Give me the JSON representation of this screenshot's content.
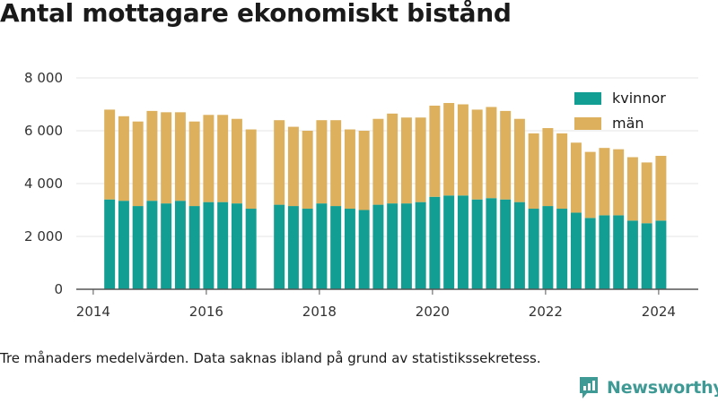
{
  "chart_data": {
    "type": "bar",
    "stacked": true,
    "title": "Antal mottagare ekonomiskt bistånd",
    "note": "Tre månaders medelvärden. Data saknas ibland på grund av statistikssekretess.",
    "brand": "Newsworthy",
    "xlim": [
      2013.7,
      2024.7
    ],
    "ylim": [
      0,
      8000
    ],
    "y_ticks": [
      0,
      2000,
      4000,
      6000,
      8000
    ],
    "y_tick_labels": [
      "0",
      "2 000",
      "4 000",
      "6 000",
      "8 000"
    ],
    "x_ticks": [
      2014,
      2016,
      2018,
      2020,
      2022,
      2024
    ],
    "x_tick_labels": [
      "2014",
      "2016",
      "2018",
      "2020",
      "2022",
      "2024"
    ],
    "legend_position": "top-right",
    "colors": {
      "kvinnor": "#139e93",
      "man": "#dcb05d",
      "axis": "#555555",
      "grid": "#e6e6e6",
      "brand": "#3f9a95"
    },
    "x": [
      2014.29,
      2014.54,
      2014.79,
      2015.04,
      2015.29,
      2015.54,
      2015.79,
      2016.04,
      2016.29,
      2016.54,
      2016.79,
      2017.29,
      2017.54,
      2017.79,
      2018.04,
      2018.29,
      2018.54,
      2018.79,
      2019.04,
      2019.29,
      2019.54,
      2019.79,
      2020.04,
      2020.29,
      2020.54,
      2020.79,
      2021.04,
      2021.29,
      2021.54,
      2021.79,
      2022.04,
      2022.29,
      2022.54,
      2022.79,
      2023.04,
      2023.29,
      2023.54,
      2023.79,
      2024.04
    ],
    "series": [
      {
        "name": "kvinnor",
        "values": [
          3400,
          3350,
          3150,
          3350,
          3250,
          3350,
          3150,
          3300,
          3300,
          3250,
          3050,
          3200,
          3150,
          3050,
          3250,
          3150,
          3050,
          3000,
          3200,
          3250,
          3250,
          3300,
          3500,
          3550,
          3550,
          3400,
          3450,
          3400,
          3300,
          3050,
          3150,
          3050,
          2900,
          2700,
          2800,
          2800,
          2600,
          2500,
          2600
        ]
      },
      {
        "name": "män",
        "values": [
          3400,
          3200,
          3200,
          3400,
          3450,
          3350,
          3200,
          3300,
          3300,
          3200,
          3000,
          3200,
          3000,
          2950,
          3150,
          3250,
          3000,
          3000,
          3250,
          3400,
          3250,
          3200,
          3450,
          3500,
          3450,
          3400,
          3450,
          3350,
          3150,
          2850,
          2950,
          2850,
          2650,
          2500,
          2550,
          2500,
          2400,
          2300,
          2450
        ]
      }
    ]
  }
}
